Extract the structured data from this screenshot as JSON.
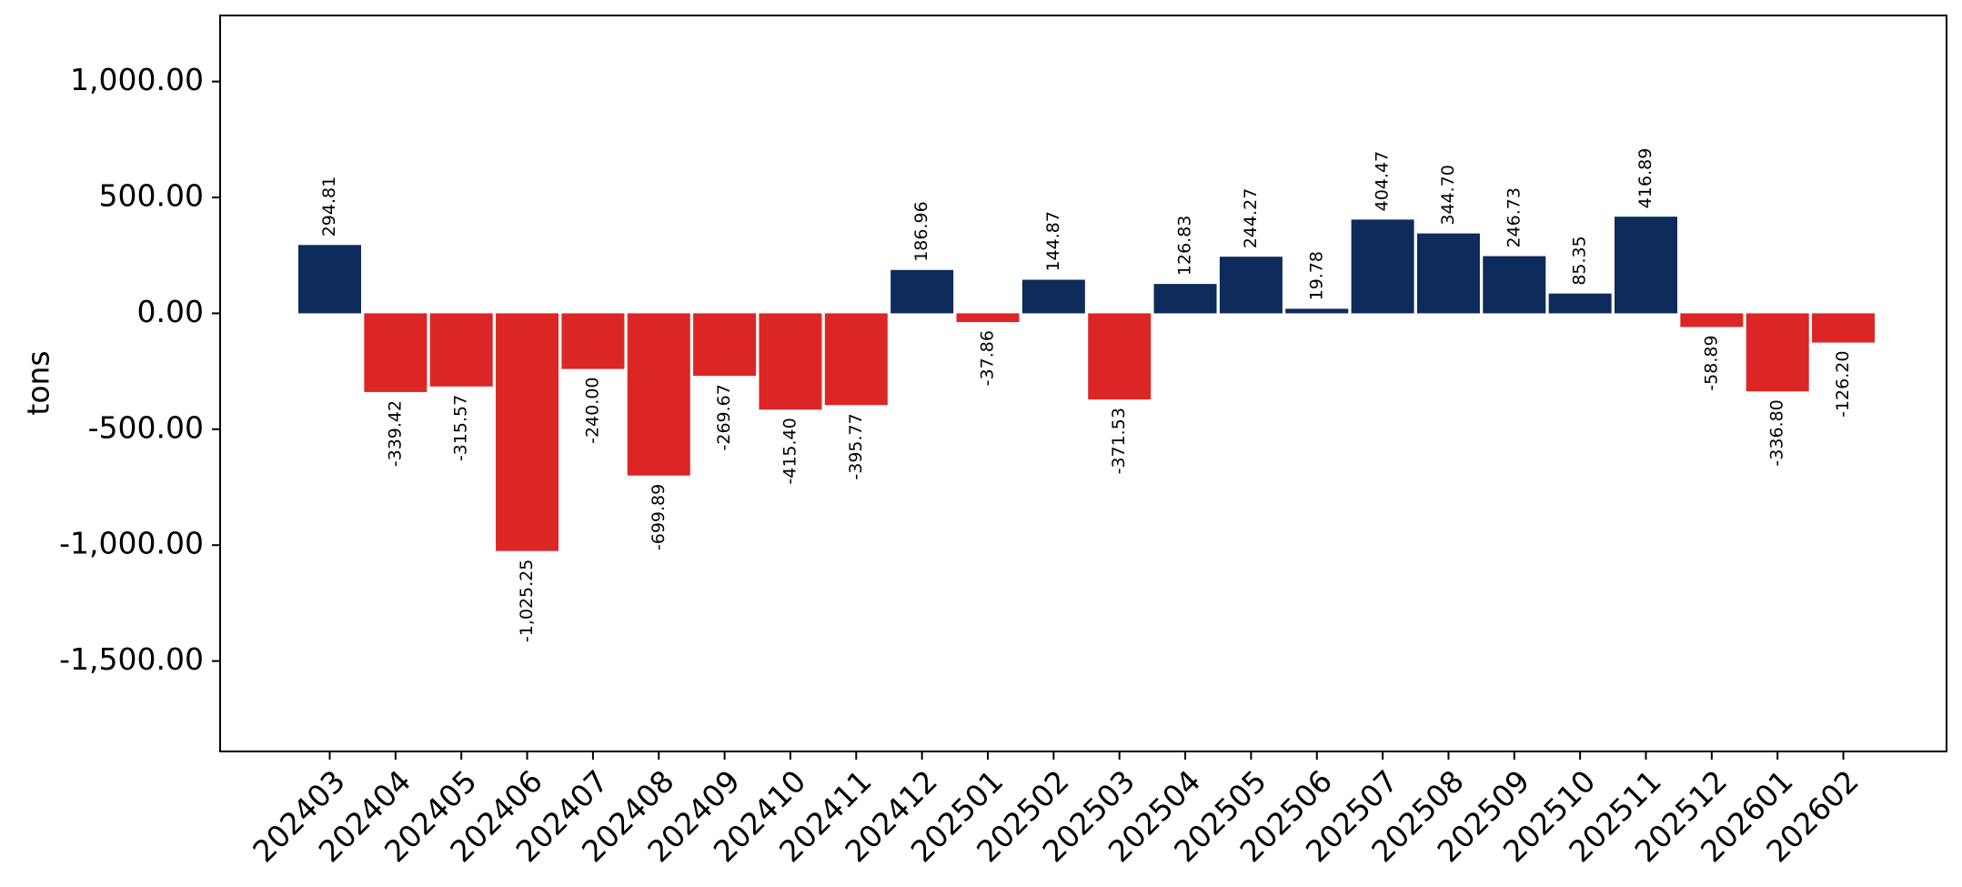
{
  "chart_data": {
    "type": "bar",
    "title": "",
    "xlabel": "",
    "ylabel": "tons",
    "ylim": [
      -1890,
      1285
    ],
    "yticks": [
      1000,
      500,
      0,
      -500,
      -1000,
      -1500
    ],
    "ytick_labels": [
      "1,000.00",
      "500.00",
      "0.00",
      "-500.00",
      "-1,000.00",
      "-1,500.00"
    ],
    "grid": false,
    "legend": "none",
    "positive_color": "#0d2b5b",
    "negative_color": "#dc2626",
    "categories": [
      "202403",
      "202404",
      "202405",
      "202406",
      "202407",
      "202408",
      "202409",
      "202410",
      "202411",
      "202412",
      "202501",
      "202502",
      "202503",
      "202504",
      "202505",
      "202506",
      "202507",
      "202508",
      "202509",
      "202510",
      "202511",
      "202512",
      "202601",
      "202602"
    ],
    "values": [
      294.81,
      -339.42,
      -315.57,
      -1025.25,
      -240.0,
      -699.89,
      -269.67,
      -415.4,
      -395.77,
      186.96,
      -37.86,
      144.87,
      -371.53,
      126.83,
      244.27,
      19.78,
      404.47,
      344.7,
      246.73,
      85.35,
      416.89,
      -58.89,
      -336.8,
      -126.2
    ],
    "value_labels": [
      "294.81",
      "-339.42",
      "-315.57",
      "-1,025.25",
      "-240.00",
      "-699.89",
      "-269.67",
      "-415.40",
      "-395.77",
      "186.96",
      "-37.86",
      "144.87",
      "-371.53",
      "126.83",
      "244.27",
      "19.78",
      "404.47",
      "344.70",
      "246.73",
      "85.35",
      "416.89",
      "-58.89",
      "-336.80",
      "-126.20"
    ]
  }
}
